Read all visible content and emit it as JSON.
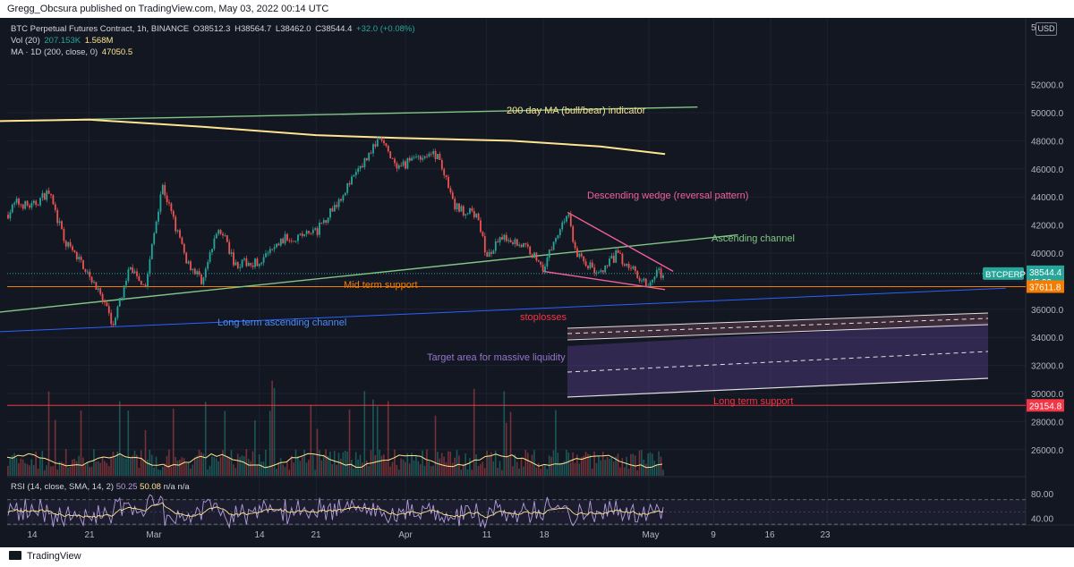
{
  "header": {
    "published": "Gregg_Obcsura published on TradingView.com, May 03, 2022 00:14 UTC"
  },
  "legend": {
    "symbol": "BTC Perpetual Futures Contract, 1h, BINANCE",
    "o": "O38512.3",
    "h": "H38564.7",
    "l": "L38462.0",
    "c": "C38544.4",
    "change": "+32.0 (+0.08%)",
    "vol_label": "Vol (20)",
    "vol_value": "207.153K",
    "vol_ma": "1.568M",
    "ma_label": "MA · 1D (200, close, 0)",
    "ma_value": "47050.5",
    "rsi_label": "RSI (14, close, SMA, 14, 2)",
    "rsi_value": "50.25",
    "rsi_sma": "50.08",
    "rsi_na": "n/a  n/a"
  },
  "price_axis": {
    "currency": "USD",
    "ticks": [
      "52000.0",
      "50000.0",
      "48000.0",
      "46000.0",
      "44000.0",
      "42000.0",
      "40000.0",
      "36000.0",
      "34000.0",
      "32000.0",
      "30000.0",
      "28000.0",
      "26000.0"
    ],
    "top_partial": "5"
  },
  "price_labels": {
    "symbol_tag": "BTCPERP",
    "last_price": "38544.4",
    "countdown": "45:09",
    "support_mid": "37611.8",
    "support_long": "29154.8"
  },
  "rsi_axis": {
    "ticks": [
      "80.00",
      "40.00"
    ]
  },
  "time_axis": {
    "ticks": [
      "14",
      "21",
      "Mar",
      "14",
      "21",
      "Apr",
      "11",
      "18",
      "May",
      "9",
      "16",
      "23"
    ]
  },
  "annotations": {
    "ma200": "200 day MA (bull/bear) indicator",
    "wedge": "Descending wedge (reversal pattern)",
    "channel": "Ascending channel",
    "mid_support": "Mid term support",
    "long_channel": "Long term ascending channel",
    "stoplosses": "stoplosses",
    "target": "Target area for massive liquidity",
    "long_support": "Long term support"
  },
  "footer": {
    "brand": "TradingView"
  },
  "colors": {
    "background": "#131722",
    "up": "#26a69a",
    "down": "#ef5350",
    "ma": "#ffe58f",
    "channel": "#81c784",
    "wedge": "#f0609a",
    "support": "#f57c00",
    "long_channel": "#2962ff",
    "long_support": "#f23645",
    "target": "#7e57c2",
    "rsi": "#b39ddb"
  },
  "chart_data": {
    "type": "candlestick",
    "title": "BTC Perpetual Futures Contract, 1h, BINANCE",
    "ylim": [
      24500,
      53000
    ],
    "x_dates": [
      "2022-02-14",
      "2022-05-03"
    ],
    "price_path": [
      [
        "2022-02-10",
        42000
      ],
      [
        "2022-02-12",
        43600
      ],
      [
        "2022-02-14",
        43300
      ],
      [
        "2022-02-16",
        44400
      ],
      [
        "2022-02-18",
        40800
      ],
      [
        "2022-02-21",
        38600
      ],
      [
        "2022-02-24",
        34900
      ],
      [
        "2022-02-26",
        39000
      ],
      [
        "2022-02-28",
        37700
      ],
      [
        "2022-03-02",
        44900
      ],
      [
        "2022-03-05",
        39500
      ],
      [
        "2022-03-07",
        38000
      ],
      [
        "2022-03-09",
        42000
      ],
      [
        "2022-03-11",
        39200
      ],
      [
        "2022-03-14",
        39400
      ],
      [
        "2022-03-17",
        41000
      ],
      [
        "2022-03-21",
        41500
      ],
      [
        "2022-03-24",
        44000
      ],
      [
        "2022-03-28",
        47500
      ],
      [
        "2022-03-29",
        48100
      ],
      [
        "2022-03-31",
        45800
      ],
      [
        "2022-04-02",
        46900
      ],
      [
        "2022-04-05",
        47000
      ],
      [
        "2022-04-07",
        43300
      ],
      [
        "2022-04-10",
        42600
      ],
      [
        "2022-04-11",
        39600
      ],
      [
        "2022-04-13",
        41200
      ],
      [
        "2022-04-16",
        40400
      ],
      [
        "2022-04-18",
        39000
      ],
      [
        "2022-04-20",
        41700
      ],
      [
        "2022-04-21",
        42900
      ],
      [
        "2022-04-22",
        40000
      ],
      [
        "2022-04-25",
        38400
      ],
      [
        "2022-04-27",
        39900
      ],
      [
        "2022-04-29",
        38800
      ],
      [
        "2022-05-01",
        37800
      ],
      [
        "2022-05-02",
        38600
      ],
      [
        "2022-05-03",
        38544.4
      ]
    ],
    "ma200": [
      [
        "2022-02-10",
        49400
      ],
      [
        "2022-02-21",
        49500
      ],
      [
        "2022-03-07",
        49000
      ],
      [
        "2022-03-21",
        48400
      ],
      [
        "2022-03-31",
        48200
      ],
      [
        "2022-04-14",
        48000
      ],
      [
        "2022-04-25",
        47600
      ],
      [
        "2022-05-03",
        47050.5
      ]
    ],
    "levels": {
      "mid_term_support": 37611.8,
      "long_term_support": 29154.8,
      "last": 38544.4
    },
    "volume": {
      "last": "207.153K",
      "ma": "1.568M"
    },
    "rsi": {
      "value": 50.25,
      "sma": 50.08,
      "bands": [
        70,
        30
      ]
    },
    "lines": {
      "ascending_channel": [
        [
          "2022-02-10",
          35800
        ],
        [
          "2022-05-12",
          41300
        ]
      ],
      "channel_top": [
        [
          "2022-02-10",
          49400
        ],
        [
          "2022-05-07",
          50400
        ]
      ],
      "long_term_ascending": [
        [
          "2022-02-10",
          34400
        ],
        [
          "2022-06-14",
          37500
        ]
      ],
      "wedge_upper": [
        [
          "2022-04-21",
          42900
        ],
        [
          "2022-05-04",
          38700
        ]
      ],
      "wedge_lower": [
        [
          "2022-04-18",
          38700
        ],
        [
          "2022-05-03",
          37400
        ]
      ]
    }
  }
}
